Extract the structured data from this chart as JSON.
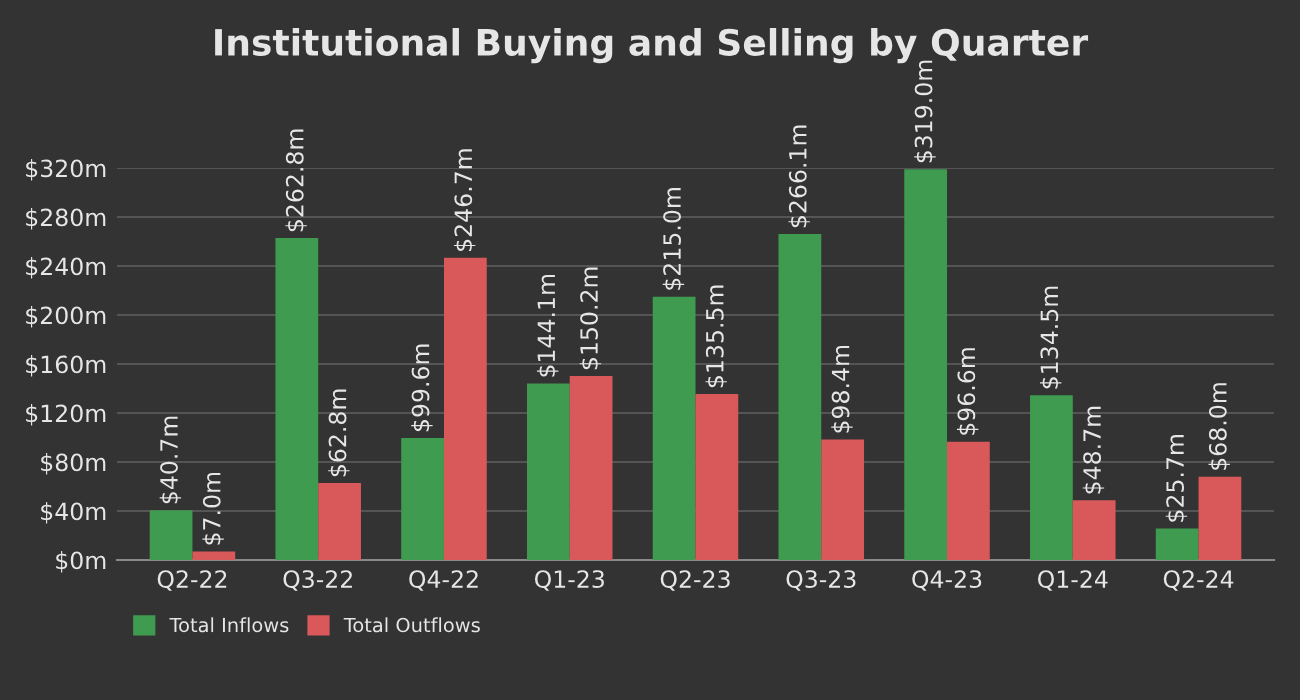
{
  "chart_data": {
    "type": "bar",
    "title": "Institutional Buying and Selling by Quarter",
    "categories": [
      "Q2-22",
      "Q3-22",
      "Q4-22",
      "Q1-23",
      "Q2-23",
      "Q3-23",
      "Q4-23",
      "Q1-24",
      "Q2-24"
    ],
    "series": [
      {
        "name": "Total Inflows",
        "color": "#3f9b4f",
        "values": [
          40.7,
          262.8,
          99.6,
          144.1,
          215.0,
          266.1,
          319.0,
          134.5,
          25.7
        ],
        "value_labels": [
          "$40.7m",
          "$262.8m",
          "$99.6m",
          "$144.1m",
          "$215.0m",
          "$266.1m",
          "$319.0m",
          "$134.5m",
          "$25.7m"
        ]
      },
      {
        "name": "Total Outflows",
        "color": "#d9585a",
        "values": [
          7.0,
          62.8,
          246.7,
          150.2,
          135.5,
          98.4,
          96.6,
          48.7,
          68.0
        ],
        "value_labels": [
          "$7.0m",
          "$62.8m",
          "$246.7m",
          "$150.2m",
          "$135.5m",
          "$98.4m",
          "$96.6m",
          "$48.7m",
          "$68.0m"
        ]
      }
    ],
    "ylim": [
      0,
      320
    ],
    "yticks": [
      {
        "value": 0,
        "label": "$0m"
      },
      {
        "value": 40,
        "label": "$40m"
      },
      {
        "value": 80,
        "label": "$80m"
      },
      {
        "value": 120,
        "label": "$120m"
      },
      {
        "value": 160,
        "label": "$160m"
      },
      {
        "value": 200,
        "label": "$200m"
      },
      {
        "value": 240,
        "label": "$240m"
      },
      {
        "value": 280,
        "label": "$280m"
      },
      {
        "value": 320,
        "label": "$320m"
      }
    ],
    "grid": "y",
    "legend": "bottom left"
  }
}
